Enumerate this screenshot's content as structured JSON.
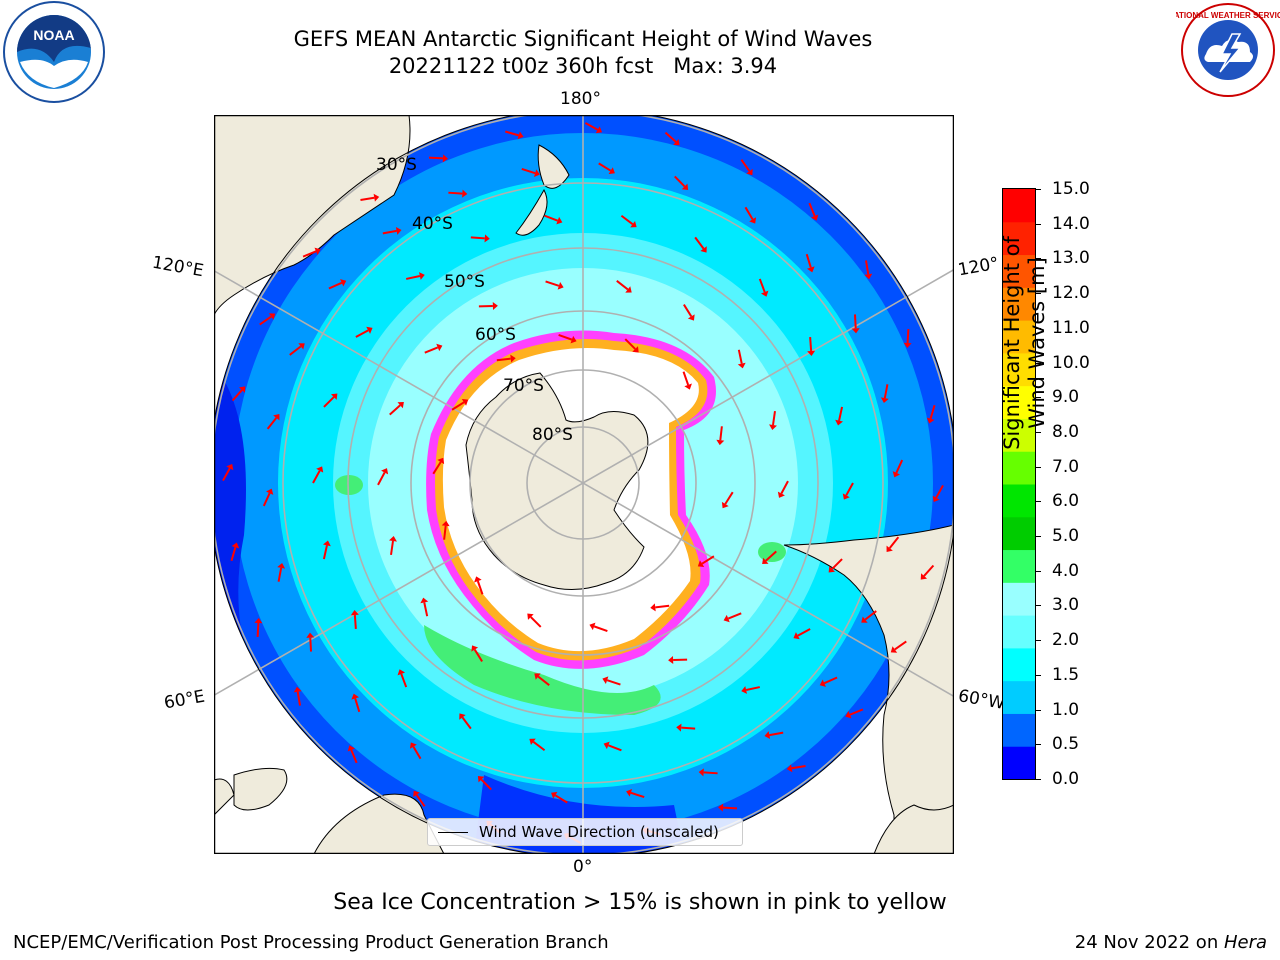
{
  "title": {
    "line1": "GEFS MEAN Antarctic Significant Height of Wind Waves",
    "line2": "20221122 t00z 360h fcst   Max: 3.94"
  },
  "logos": {
    "left": "noaa-logo",
    "right": "nws-logo",
    "left_text": "NOAA",
    "right_text": "NATIONAL WEATHER SERVICE"
  },
  "map": {
    "projection": "south-polar-stereographic",
    "longitude_labels": {
      "top": "180°",
      "bottom": "0°",
      "left_upper": "120°E",
      "left_lower": "60°E",
      "right_upper": "120°",
      "right_lower": "60°W"
    },
    "latitude_labels": [
      "30°S",
      "40°S",
      "50°S",
      "60°S",
      "70°S",
      "80°S"
    ],
    "legend_label": "Wind Wave Direction (unscaled)",
    "colors": {
      "land": "#efebdc",
      "sea_ice_low": "#ff40ff",
      "sea_ice_high": "#ffb020",
      "ice_interior": "#ffffff",
      "arrow": "#ff0000",
      "grid": "#b0b0b0"
    }
  },
  "colorbar": {
    "title": "Significant Height of Wind Waves [m]",
    "labels": [
      "15.0",
      "14.0",
      "13.0",
      "12.0",
      "11.0",
      "10.0",
      "9.0",
      "8.0",
      "7.0",
      "6.0",
      "5.0",
      "4.0",
      "3.0",
      "2.0",
      "1.5",
      "1.0",
      "0.5",
      "0.0"
    ],
    "colors_bottom_to_top": [
      "#0000ff",
      "#0066ff",
      "#00ccff",
      "#00ffff",
      "#66ffff",
      "#99ffff",
      "#33ff66",
      "#00cc00",
      "#00e600",
      "#66ff00",
      "#ccff00",
      "#ffff00",
      "#ffdd00",
      "#ffbb00",
      "#ff8800",
      "#ff5500",
      "#ff2200",
      "#ff0000"
    ]
  },
  "footer": {
    "note": "Sea Ice Concentration > 15% is shown in pink to yellow",
    "left": "NCEP/EMC/Verification Post Processing Product Generation Branch",
    "right_prefix": "24 Nov 2022 on ",
    "right_machine": "Hera"
  }
}
